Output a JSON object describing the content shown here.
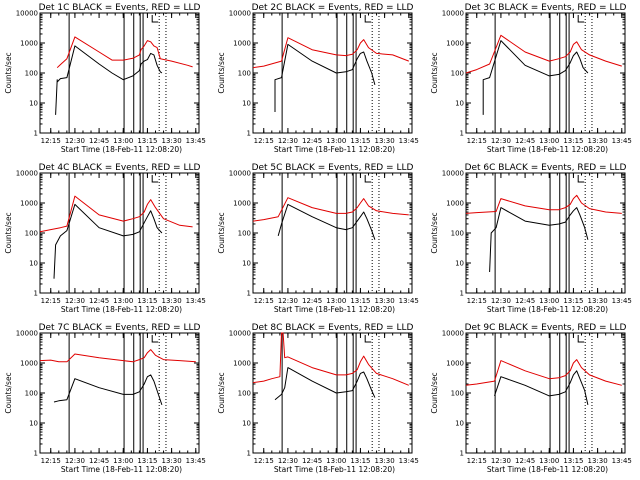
{
  "chart_data": {
    "type": "line",
    "layout": "3x3 grid of panels",
    "y_scale": "log",
    "ylim": [
      1,
      10000
    ],
    "xlim": [
      "12:08:20",
      "13:47"
    ],
    "ylabel": "Counts/sec",
    "xlabel": "Start Time (18-Feb-11 12:08:20)",
    "xticks": [
      "12:15",
      "12:30",
      "12:45",
      "13:00",
      "13:15",
      "13:30",
      "13:45"
    ],
    "yticks": [
      "1",
      "10",
      "100",
      "1000",
      "10000"
    ],
    "series_colors": {
      "black": "#000000",
      "red": "#e00000"
    },
    "grid": false,
    "panels": [
      {
        "title": "Det 1C BLACK = Events, RED = LLD",
        "series": [
          {
            "color": "black",
            "x": [
              "12:18",
              "12:19",
              "12:19",
              "12:21",
              "12:25",
              "12:30",
              "12:45",
              "12:53",
              "13:00",
              "13:06",
              "13:10",
              "13:11",
              "13:13",
              "13:15",
              "13:17",
              "13:19",
              "13:21",
              "13:23",
              "13:24"
            ],
            "y": [
              4,
              60,
              50,
              65,
              70,
              800,
              200,
              100,
              60,
              80,
              120,
              200,
              250,
              280,
              450,
              400,
              180,
              110,
              100
            ]
          },
          {
            "color": "red",
            "x": [
              "12:19",
              "12:21",
              "12:25",
              "12:30",
              "12:45",
              "12:53",
              "13:00",
              "13:06",
              "13:10",
              "13:11",
              "13:13",
              "13:15",
              "13:17",
              "13:19",
              "13:21",
              "13:23",
              "13:30",
              "13:40",
              "13:43"
            ],
            "y": [
              150,
              190,
              300,
              1600,
              500,
              270,
              270,
              310,
              400,
              600,
              800,
              1200,
              1100,
              800,
              700,
              300,
              250,
              180,
              160
            ]
          }
        ]
      },
      {
        "title": "Det 2C BLACK = Events, RED = LLD",
        "series": [
          {
            "color": "black",
            "x": [
              "12:22",
              "12:22",
              "12:26",
              "12:30",
              "12:45",
              "13:00",
              "13:06",
              "13:10",
              "13:13",
              "13:15",
              "13:17",
              "13:19",
              "13:22",
              "13:24"
            ],
            "y": [
              5,
              60,
              70,
              900,
              250,
              100,
              110,
              130,
              300,
              450,
              500,
              250,
              100,
              40
            ]
          },
          {
            "color": "red",
            "x": [
              "12:08:20",
              "12:15",
              "12:26",
              "12:30",
              "12:45",
              "13:00",
              "13:06",
              "13:10",
              "13:13",
              "13:15",
              "13:17",
              "13:20",
              "13:25",
              "13:35",
              "13:45"
            ],
            "y": [
              150,
              170,
              250,
              1500,
              600,
              400,
              380,
              420,
              600,
              1000,
              1300,
              700,
              450,
              400,
              250
            ]
          }
        ]
      },
      {
        "title": "Det 3C BLACK = Events, RED = LLD",
        "series": [
          {
            "color": "black",
            "x": [
              "12:19",
              "12:19",
              "12:23",
              "12:30",
              "12:45",
              "13:00",
              "13:06",
              "13:10",
              "13:13",
              "13:15",
              "13:17",
              "13:19",
              "13:21",
              "13:24"
            ],
            "y": [
              4,
              60,
              70,
              1200,
              180,
              80,
              90,
              120,
              220,
              380,
              500,
              300,
              150,
              100
            ]
          },
          {
            "color": "red",
            "x": [
              "12:08:20",
              "12:15",
              "12:23",
              "12:30",
              "12:45",
              "13:00",
              "13:06",
              "13:10",
              "13:13",
              "13:15",
              "13:17",
              "13:20",
              "13:25",
              "13:35",
              "13:45"
            ],
            "y": [
              100,
              130,
              200,
              1800,
              500,
              250,
              300,
              350,
              500,
              900,
              1100,
              600,
              400,
              250,
              170
            ]
          }
        ]
      },
      {
        "title": "Det 4C BLACK = Events, RED = LLD",
        "series": [
          {
            "color": "black",
            "x": [
              "12:17",
              "12:18",
              "12:21",
              "12:25",
              "12:30",
              "12:45",
              "13:00",
              "13:06",
              "13:10",
              "13:13",
              "13:15",
              "13:17",
              "13:19",
              "13:21",
              "13:24"
            ],
            "y": [
              3,
              40,
              80,
              120,
              900,
              150,
              80,
              90,
              110,
              220,
              350,
              550,
              300,
              150,
              100
            ]
          },
          {
            "color": "red",
            "x": [
              "12:08:20",
              "12:15",
              "12:21",
              "12:25",
              "12:30",
              "12:45",
              "13:00",
              "13:06",
              "13:10",
              "13:13",
              "13:15",
              "13:17",
              "13:20",
              "13:25",
              "13:35",
              "13:43"
            ],
            "y": [
              110,
              130,
              150,
              170,
              1700,
              400,
              250,
              300,
              350,
              500,
              900,
              1300,
              700,
              300,
              180,
              160
            ]
          }
        ]
      },
      {
        "title": "Det 5C BLACK = Events, RED = LLD",
        "series": [
          {
            "color": "black",
            "x": [
              "12:24",
              "12:26",
              "12:30",
              "12:45",
              "13:00",
              "13:06",
              "13:10",
              "13:13",
              "13:15",
              "13:17",
              "13:19",
              "13:22",
              "13:24"
            ],
            "y": [
              80,
              200,
              900,
              350,
              150,
              130,
              150,
              250,
              350,
              500,
              300,
              120,
              60
            ]
          },
          {
            "color": "red",
            "x": [
              "12:08:20",
              "12:15",
              "12:24",
              "12:30",
              "12:45",
              "13:00",
              "13:06",
              "13:10",
              "13:13",
              "13:15",
              "13:17",
              "13:20",
              "13:25",
              "13:35",
              "13:45"
            ],
            "y": [
              250,
              280,
              350,
              1500,
              700,
              450,
              450,
              500,
              700,
              1000,
              1400,
              800,
              550,
              450,
              400
            ]
          }
        ]
      },
      {
        "title": "Det 6C BLACK = Events, RED = LLD",
        "series": [
          {
            "color": "black",
            "x": [
              "12:23",
              "12:24",
              "12:27",
              "12:30",
              "12:45",
              "13:00",
              "13:06",
              "13:10",
              "13:13",
              "13:15",
              "13:17",
              "13:19",
              "13:22",
              "13:24"
            ],
            "y": [
              5,
              100,
              150,
              700,
              250,
              180,
              200,
              230,
              400,
              550,
              700,
              400,
              150,
              60
            ]
          },
          {
            "color": "red",
            "x": [
              "12:08:20",
              "12:15",
              "12:27",
              "12:30",
              "12:45",
              "13:00",
              "13:06",
              "13:10",
              "13:13",
              "13:15",
              "13:17",
              "13:20",
              "13:25",
              "13:35",
              "13:45"
            ],
            "y": [
              450,
              480,
              520,
              1400,
              800,
              600,
              600,
              700,
              900,
              1400,
              1800,
              1000,
              650,
              500,
              450
            ]
          }
        ]
      },
      {
        "title": "Det 7C BLACK = Events, RED = LLD",
        "series": [
          {
            "color": "black",
            "x": [
              "12:17",
              "12:20",
              "12:25",
              "12:30",
              "12:45",
              "13:00",
              "13:06",
              "13:10",
              "13:13",
              "13:15",
              "13:17",
              "13:19",
              "13:21",
              "13:24"
            ],
            "y": [
              50,
              55,
              60,
              300,
              150,
              90,
              90,
              110,
              200,
              350,
              400,
              250,
              120,
              40
            ]
          },
          {
            "color": "red",
            "x": [
              "12:08:20",
              "12:15",
              "12:20",
              "12:25",
              "12:30",
              "12:45",
              "13:00",
              "13:06",
              "13:10",
              "13:13",
              "13:15",
              "13:17",
              "13:20",
              "13:25",
              "13:35",
              "13:45"
            ],
            "y": [
              1200,
              1250,
              1100,
              1100,
              2000,
              1500,
              1200,
              1100,
              1300,
              1500,
              2200,
              2800,
              1800,
              1300,
              1200,
              1100
            ]
          }
        ]
      },
      {
        "title": "Det 8C BLACK = Events, RED = LLD",
        "series": [
          {
            "color": "black",
            "x": [
              "12:22",
              "12:26",
              "12:28",
              "12:30",
              "12:45",
              "13:00",
              "13:06",
              "13:10",
              "13:13",
              "13:15",
              "13:17",
              "13:19",
              "13:22",
              "13:24"
            ],
            "y": [
              60,
              90,
              150,
              700,
              250,
              100,
              110,
              120,
              250,
              450,
              500,
              300,
              120,
              70
            ]
          },
          {
            "color": "red",
            "x": [
              "12:08:20",
              "12:15",
              "12:20",
              "12:25",
              "12:26",
              "12:27",
              "12:28",
              "12:30",
              "12:45",
              "13:00",
              "13:06",
              "13:10",
              "13:13",
              "13:15",
              "13:17",
              "13:20",
              "13:25",
              "13:35",
              "13:45"
            ],
            "y": [
              220,
              250,
              300,
              350,
              10000,
              10000,
              1500,
              1600,
              700,
              400,
              400,
              450,
              600,
              1100,
              1700,
              900,
              450,
              300,
              180
            ]
          }
        ]
      },
      {
        "title": "Det 9C BLACK = Events, RED = LLD",
        "series": [
          {
            "color": "black",
            "x": [
              "12:26",
              "12:30",
              "12:45",
              "13:00",
              "13:06",
              "13:10",
              "13:13",
              "13:15",
              "13:17",
              "13:19",
              "13:22",
              "13:24"
            ],
            "y": [
              80,
              350,
              180,
              80,
              90,
              110,
              220,
              400,
              550,
              300,
              120,
              40
            ]
          },
          {
            "color": "red",
            "x": [
              "12:08:20",
              "12:15",
              "12:26",
              "12:30",
              "12:45",
              "13:00",
              "13:06",
              "13:10",
              "13:13",
              "13:15",
              "13:17",
              "13:20",
              "13:25",
              "13:35",
              "13:45"
            ],
            "y": [
              180,
              200,
              250,
              1200,
              550,
              300,
              320,
              380,
              550,
              1000,
              1300,
              700,
              400,
              250,
              180
            ]
          }
        ]
      }
    ]
  }
}
